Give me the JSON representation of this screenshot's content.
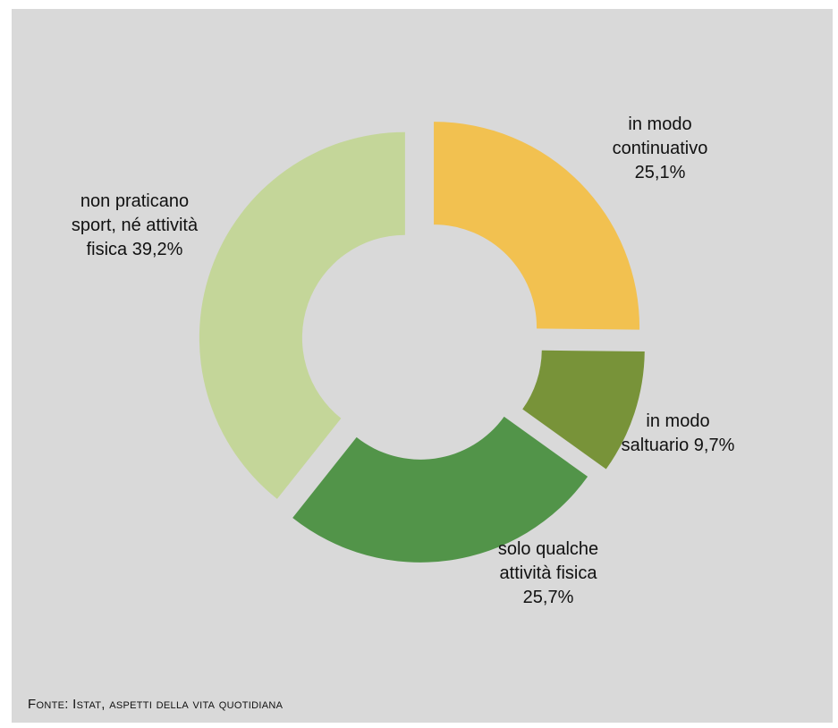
{
  "chart_data": {
    "type": "pie",
    "variant": "donut",
    "exploded": true,
    "start": "top",
    "direction": "clockwise",
    "slices": [
      {
        "label_lines": [
          "in modo",
          "continuativo",
          "25,1%"
        ],
        "value": 25.1,
        "color": "#f2c150"
      },
      {
        "label_lines": [
          "in modo",
          "saltuario 9,7%"
        ],
        "value": 9.7,
        "color": "#789339"
      },
      {
        "label_lines": [
          "solo qualche",
          "attività fisica",
          "25,7%"
        ],
        "value": 25.7,
        "color": "#529449"
      },
      {
        "label_lines": [
          "non praticano",
          "sport, né attività",
          "fisica 39,2%"
        ],
        "value": 39.2,
        "color": "#c4d699"
      }
    ]
  },
  "source": {
    "text": "Fonte: Istat, aspetti della vita quotidiana"
  }
}
